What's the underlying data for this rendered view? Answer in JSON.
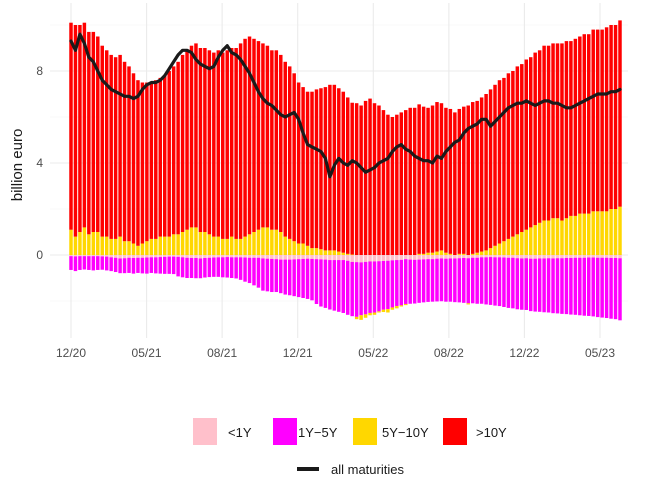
{
  "chart_data": {
    "type": "bar",
    "ylabel": "billion euro",
    "xlabel": "",
    "ylim": [
      -3.6,
      10.6
    ],
    "yticks": [
      0,
      4,
      8
    ],
    "x_ticks": [
      "12/20",
      "05/21",
      "08/21",
      "12/21",
      "05/22",
      "08/22",
      "12/22",
      "05/23"
    ],
    "grid": true,
    "legend_position": "bottom",
    "series": [
      {
        "name": "<1Y",
        "color": "#FFC0CB",
        "values": [
          -0.05,
          -0.06,
          -0.05,
          -0.05,
          -0.05,
          -0.05,
          -0.05,
          -0.06,
          -0.07,
          -0.1,
          -0.12,
          -0.15,
          -0.14,
          -0.12,
          -0.13,
          -0.12,
          -0.12,
          -0.11,
          -0.1,
          -0.1,
          -0.09,
          -0.08,
          -0.07,
          -0.07,
          -0.08,
          -0.1,
          -0.12,
          -0.13,
          -0.13,
          -0.15,
          -0.13,
          -0.12,
          -0.11,
          -0.1,
          -0.1,
          -0.09,
          -0.1,
          -0.1,
          -0.1,
          -0.11,
          -0.12,
          -0.12,
          -0.12,
          -0.15,
          -0.16,
          -0.17,
          -0.18,
          -0.2,
          -0.2,
          -0.2,
          -0.19,
          -0.18,
          -0.17,
          -0.16,
          -0.17,
          -0.18,
          -0.19,
          -0.2,
          -0.22,
          -0.22,
          -0.22,
          -0.22,
          -0.25,
          -0.3,
          -0.31,
          -0.32,
          -0.3,
          -0.28,
          -0.28,
          -0.27,
          -0.26,
          -0.25,
          -0.23,
          -0.22,
          -0.21,
          -0.18,
          -0.2,
          -0.21,
          -0.2,
          -0.19,
          -0.18,
          -0.18,
          -0.16,
          -0.15,
          -0.16,
          -0.15,
          -0.15,
          -0.14,
          -0.13,
          -0.14,
          -0.12,
          -0.12,
          -0.1,
          -0.1,
          -0.09,
          -0.1,
          -0.1,
          -0.11,
          -0.12,
          -0.12,
          -0.14,
          -0.15,
          -0.14,
          -0.16,
          -0.16,
          -0.15,
          -0.15,
          -0.14,
          -0.15,
          -0.14,
          -0.14,
          -0.13,
          -0.13,
          -0.12,
          -0.12,
          -0.12,
          -0.11,
          -0.11,
          -0.12,
          -0.12,
          -0.12,
          -0.13,
          -0.13,
          -0.14
        ]
      },
      {
        "name": "1Y−5Y",
        "color": "#FF00FF",
        "values": [
          -0.6,
          -0.64,
          -0.6,
          -0.58,
          -0.6,
          -0.62,
          -0.6,
          -0.58,
          -0.6,
          -0.6,
          -0.62,
          -0.64,
          -0.65,
          -0.66,
          -0.68,
          -0.66,
          -0.68,
          -0.7,
          -0.68,
          -0.7,
          -0.72,
          -0.74,
          -0.75,
          -0.76,
          -0.85,
          -0.87,
          -0.88,
          -0.87,
          -0.88,
          -0.86,
          -0.85,
          -0.84,
          -0.84,
          -0.85,
          -0.87,
          -0.89,
          -0.9,
          -0.92,
          -0.98,
          -1.05,
          -1.1,
          -1.2,
          -1.3,
          -1.4,
          -1.42,
          -1.44,
          -1.43,
          -1.46,
          -1.52,
          -1.55,
          -1.6,
          -1.65,
          -1.7,
          -1.75,
          -1.8,
          -1.95,
          -2.05,
          -2.1,
          -2.15,
          -2.2,
          -2.25,
          -2.3,
          -2.35,
          -2.36,
          -2.38,
          -2.3,
          -2.28,
          -2.24,
          -2.22,
          -2.18,
          -2.12,
          -2.1,
          -2.05,
          -2.0,
          -1.98,
          -1.95,
          -1.92,
          -1.9,
          -1.88,
          -1.87,
          -1.86,
          -1.85,
          -1.86,
          -1.86,
          -1.87,
          -1.88,
          -1.9,
          -1.92,
          -1.95,
          -1.96,
          -1.98,
          -2.0,
          -2.02,
          -2.05,
          -2.08,
          -2.1,
          -2.12,
          -2.15,
          -2.18,
          -2.2,
          -2.22,
          -2.23,
          -2.25,
          -2.28,
          -2.3,
          -2.32,
          -2.34,
          -2.36,
          -2.38,
          -2.4,
          -2.42,
          -2.44,
          -2.46,
          -2.48,
          -2.5,
          -2.52,
          -2.54,
          -2.56,
          -2.58,
          -2.6,
          -2.62,
          -2.64,
          -2.66,
          -2.7
        ]
      },
      {
        "name": "5Y−10Y",
        "color": "#FFD700",
        "values": [
          1.1,
          0.8,
          1.0,
          1.2,
          0.9,
          1.0,
          1.0,
          0.8,
          0.8,
          0.7,
          0.7,
          0.8,
          0.6,
          0.6,
          0.5,
          0.4,
          0.5,
          0.6,
          0.7,
          0.7,
          0.8,
          0.8,
          0.8,
          0.9,
          0.9,
          1.0,
          1.1,
          1.2,
          1.2,
          1.0,
          1.0,
          0.9,
          0.8,
          0.8,
          0.7,
          0.7,
          0.8,
          0.7,
          0.7,
          0.8,
          0.9,
          1.0,
          1.1,
          1.2,
          1.2,
          1.1,
          1.1,
          1.0,
          0.8,
          0.7,
          0.6,
          0.5,
          0.5,
          0.4,
          0.3,
          0.3,
          0.25,
          0.2,
          0.2,
          0.2,
          0.15,
          0.1,
          0.05,
          0.02,
          -0.1,
          -0.2,
          -0.15,
          -0.1,
          -0.1,
          -0.05,
          -0.1,
          -0.15,
          -0.1,
          -0.1,
          -0.05,
          -0.05,
          0.0,
          0.0,
          0.05,
          0.05,
          0.1,
          0.1,
          0.15,
          0.2,
          0.1,
          0.05,
          0.0,
          0.05,
          0.05,
          -0.05,
          0.05,
          0.1,
          0.15,
          0.2,
          0.3,
          0.4,
          0.5,
          0.6,
          0.7,
          0.8,
          0.9,
          1.0,
          1.1,
          1.2,
          1.3,
          1.4,
          1.5,
          1.5,
          1.6,
          1.6,
          1.5,
          1.6,
          1.7,
          1.7,
          1.8,
          1.8,
          1.8,
          1.9,
          1.9,
          1.9,
          1.9,
          2.0,
          2.0,
          2.1
        ]
      },
      {
        "name": ">10Y",
        "color": "#FF0000",
        "values": [
          9.0,
          9.2,
          9.0,
          8.9,
          8.8,
          8.7,
          8.5,
          8.3,
          8.1,
          8.0,
          7.9,
          7.9,
          7.8,
          7.6,
          7.4,
          7.2,
          7.0,
          6.9,
          6.8,
          6.9,
          6.9,
          7.0,
          7.2,
          7.3,
          7.5,
          7.7,
          7.8,
          7.9,
          8.0,
          8.0,
          8.0,
          8.0,
          8.0,
          8.1,
          8.1,
          8.2,
          8.2,
          8.3,
          8.5,
          8.6,
          8.6,
          8.4,
          8.2,
          8.0,
          7.9,
          7.8,
          7.8,
          7.7,
          7.6,
          7.5,
          7.3,
          7.0,
          6.8,
          6.7,
          6.8,
          6.9,
          7.0,
          7.1,
          7.2,
          7.2,
          7.1,
          7.0,
          6.8,
          6.6,
          6.6,
          6.5,
          6.7,
          6.8,
          6.6,
          6.5,
          6.3,
          6.1,
          6.0,
          6.1,
          6.2,
          6.3,
          6.4,
          6.4,
          6.5,
          6.4,
          6.3,
          6.4,
          6.5,
          6.4,
          6.3,
          6.3,
          6.2,
          6.3,
          6.4,
          6.5,
          6.6,
          6.6,
          6.7,
          6.8,
          6.9,
          7.0,
          7.1,
          7.1,
          7.2,
          7.2,
          7.3,
          7.3,
          7.4,
          7.4,
          7.5,
          7.5,
          7.6,
          7.6,
          7.6,
          7.6,
          7.7,
          7.7,
          7.6,
          7.7,
          7.7,
          7.8,
          7.8,
          7.9,
          7.9,
          7.9,
          8.0,
          8.0,
          8.0,
          8.1
        ]
      },
      {
        "name": "all maturities",
        "color": "#1a1a1a",
        "type": "line",
        "values": [
          9.3,
          8.9,
          9.6,
          9.2,
          8.6,
          8.4,
          8.0,
          7.6,
          7.4,
          7.2,
          7.1,
          7.0,
          6.9,
          6.9,
          6.8,
          6.9,
          7.2,
          7.4,
          7.5,
          7.5,
          7.6,
          7.8,
          8.1,
          8.4,
          8.7,
          8.9,
          8.9,
          8.8,
          8.5,
          8.3,
          8.2,
          8.1,
          8.2,
          8.6,
          8.9,
          9.1,
          8.8,
          8.7,
          8.5,
          8.2,
          7.9,
          7.5,
          7.1,
          6.8,
          6.6,
          6.5,
          6.3,
          6.1,
          6.0,
          6.1,
          6.2,
          5.9,
          5.3,
          4.8,
          4.7,
          4.6,
          4.5,
          4.2,
          3.4,
          3.9,
          4.2,
          4.0,
          3.9,
          4.1,
          4.0,
          3.8,
          3.6,
          3.7,
          3.8,
          4.0,
          4.1,
          4.2,
          4.5,
          4.7,
          4.8,
          4.6,
          4.5,
          4.3,
          4.2,
          4.1,
          4.1,
          4.0,
          4.3,
          4.2,
          4.5,
          4.7,
          4.9,
          5.0,
          5.3,
          5.5,
          5.6,
          5.7,
          5.9,
          5.9,
          5.6,
          5.8,
          6.0,
          6.2,
          6.4,
          6.5,
          6.6,
          6.6,
          6.7,
          6.6,
          6.5,
          6.6,
          6.7,
          6.7,
          6.6,
          6.6,
          6.5,
          6.4,
          6.4,
          6.5,
          6.6,
          6.7,
          6.8,
          6.9,
          7.0,
          7.0,
          7.0,
          7.1,
          7.1,
          7.2
        ]
      }
    ]
  }
}
